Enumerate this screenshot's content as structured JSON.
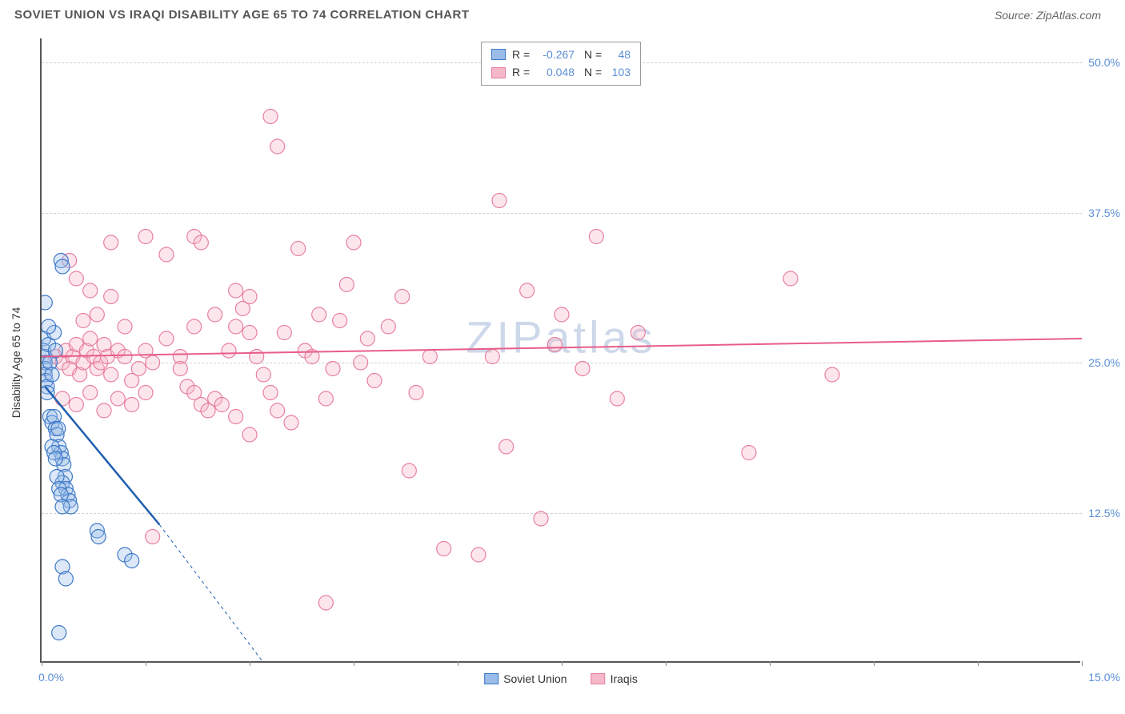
{
  "header": {
    "title": "SOVIET UNION VS IRAQI DISABILITY AGE 65 TO 74 CORRELATION CHART",
    "source": "Source: ZipAtlas.com"
  },
  "watermark": "ZIPatlas",
  "chart": {
    "type": "scatter",
    "y_axis_title": "Disability Age 65 to 74",
    "xlim": [
      0,
      15
    ],
    "ylim": [
      0,
      52
    ],
    "y_ticks": [
      12.5,
      25.0,
      37.5,
      50.0
    ],
    "y_tick_labels": [
      "12.5%",
      "25.0%",
      "37.5%",
      "50.0%"
    ],
    "x_ticks": [
      0,
      1.5,
      3.0,
      4.5,
      6.0,
      7.5,
      9.0,
      10.5,
      12.0,
      13.5,
      15.0
    ],
    "x_start_label": "0.0%",
    "x_end_label": "15.0%",
    "background_color": "#ffffff",
    "grid_color": "#d0d0d0",
    "axis_color": "#555555",
    "tick_label_color": "#5b8fd6",
    "marker_radius": 9,
    "marker_stroke_width": 1.2,
    "marker_fill_opacity": 0.35,
    "series": {
      "soviet": {
        "label": "Soviet Union",
        "fill": "#9bbce8",
        "stroke": "#3d78c7",
        "trend_color": "#1f5fb0",
        "trend_solid": {
          "x1": 0.05,
          "y1": 23.0,
          "x2": 1.7,
          "y2": 11.5
        },
        "trend_dashed": {
          "x1": 1.7,
          "y1": 11.5,
          "x2": 3.2,
          "y2": 0.0
        },
        "points": [
          [
            0.03,
            27.0
          ],
          [
            0.03,
            26.0
          ],
          [
            0.05,
            25.5
          ],
          [
            0.05,
            25.0
          ],
          [
            0.05,
            24.5
          ],
          [
            0.05,
            24.0
          ],
          [
            0.06,
            23.5
          ],
          [
            0.08,
            23.0
          ],
          [
            0.08,
            22.5
          ],
          [
            0.1,
            26.5
          ],
          [
            0.12,
            25.0
          ],
          [
            0.15,
            24.0
          ],
          [
            0.18,
            27.5
          ],
          [
            0.2,
            26.0
          ],
          [
            0.05,
            30.0
          ],
          [
            0.1,
            28.0
          ],
          [
            0.28,
            33.5
          ],
          [
            0.3,
            33.0
          ],
          [
            0.12,
            20.5
          ],
          [
            0.15,
            20.0
          ],
          [
            0.18,
            20.5
          ],
          [
            0.2,
            19.5
          ],
          [
            0.22,
            19.0
          ],
          [
            0.24,
            19.5
          ],
          [
            0.25,
            18.0
          ],
          [
            0.28,
            17.5
          ],
          [
            0.3,
            17.0
          ],
          [
            0.32,
            16.5
          ],
          [
            0.34,
            15.5
          ],
          [
            0.3,
            15.0
          ],
          [
            0.35,
            14.5
          ],
          [
            0.38,
            14.0
          ],
          [
            0.4,
            13.5
          ],
          [
            0.42,
            13.0
          ],
          [
            0.15,
            18.0
          ],
          [
            0.18,
            17.5
          ],
          [
            0.2,
            17.0
          ],
          [
            0.22,
            15.5
          ],
          [
            0.25,
            14.5
          ],
          [
            0.28,
            14.0
          ],
          [
            0.3,
            13.0
          ],
          [
            0.8,
            11.0
          ],
          [
            0.82,
            10.5
          ],
          [
            1.2,
            9.0
          ],
          [
            1.3,
            8.5
          ],
          [
            0.3,
            8.0
          ],
          [
            0.35,
            7.0
          ],
          [
            0.25,
            2.5
          ]
        ]
      },
      "iraqi": {
        "label": "Iraqis",
        "fill": "#f5b8c8",
        "stroke": "#e87fa0",
        "trend_color": "#e85d8a",
        "trend_solid": {
          "x1": 0.0,
          "y1": 25.5,
          "x2": 15.0,
          "y2": 27.0
        },
        "points": [
          [
            0.2,
            25.5
          ],
          [
            0.3,
            25.0
          ],
          [
            0.35,
            26.0
          ],
          [
            0.4,
            24.5
          ],
          [
            0.45,
            25.5
          ],
          [
            0.5,
            26.5
          ],
          [
            0.55,
            24.0
          ],
          [
            0.6,
            25.0
          ],
          [
            0.65,
            26.0
          ],
          [
            0.7,
            27.0
          ],
          [
            0.75,
            25.5
          ],
          [
            0.8,
            24.5
          ],
          [
            0.85,
            25.0
          ],
          [
            0.9,
            26.5
          ],
          [
            0.95,
            25.5
          ],
          [
            1.0,
            24.0
          ],
          [
            1.1,
            26.0
          ],
          [
            1.2,
            25.5
          ],
          [
            1.3,
            23.5
          ],
          [
            1.4,
            24.5
          ],
          [
            1.5,
            26.0
          ],
          [
            1.6,
            25.0
          ],
          [
            0.3,
            22.0
          ],
          [
            0.5,
            21.5
          ],
          [
            0.7,
            22.5
          ],
          [
            0.9,
            21.0
          ],
          [
            1.1,
            22.0
          ],
          [
            1.3,
            21.5
          ],
          [
            1.5,
            22.5
          ],
          [
            0.6,
            28.5
          ],
          [
            0.8,
            29.0
          ],
          [
            1.0,
            30.5
          ],
          [
            0.7,
            31.0
          ],
          [
            1.2,
            28.0
          ],
          [
            0.5,
            32.0
          ],
          [
            0.4,
            33.5
          ],
          [
            1.0,
            35.0
          ],
          [
            1.5,
            35.5
          ],
          [
            1.8,
            34.0
          ],
          [
            2.2,
            35.5
          ],
          [
            2.3,
            35.0
          ],
          [
            2.0,
            25.5
          ],
          [
            2.1,
            23.0
          ],
          [
            2.2,
            22.5
          ],
          [
            2.3,
            21.5
          ],
          [
            2.4,
            21.0
          ],
          [
            2.5,
            22.0
          ],
          [
            2.6,
            21.5
          ],
          [
            2.7,
            26.0
          ],
          [
            2.8,
            28.0
          ],
          [
            2.9,
            29.5
          ],
          [
            3.0,
            30.5
          ],
          [
            3.1,
            25.5
          ],
          [
            3.2,
            24.0
          ],
          [
            3.3,
            22.5
          ],
          [
            3.4,
            21.0
          ],
          [
            1.6,
            10.5
          ],
          [
            2.0,
            24.5
          ],
          [
            2.5,
            29.0
          ],
          [
            2.8,
            20.5
          ],
          [
            3.0,
            19.0
          ],
          [
            2.8,
            31.0
          ],
          [
            3.3,
            45.5
          ],
          [
            3.4,
            43.0
          ],
          [
            3.5,
            27.5
          ],
          [
            3.6,
            20.0
          ],
          [
            3.7,
            34.5
          ],
          [
            3.8,
            26.0
          ],
          [
            3.9,
            25.5
          ],
          [
            4.0,
            29.0
          ],
          [
            4.1,
            22.0
          ],
          [
            4.2,
            24.5
          ],
          [
            4.3,
            28.5
          ],
          [
            4.5,
            35.0
          ],
          [
            4.1,
            5.0
          ],
          [
            4.4,
            31.5
          ],
          [
            4.6,
            25.0
          ],
          [
            4.7,
            27.0
          ],
          [
            4.8,
            23.5
          ],
          [
            5.0,
            28.0
          ],
          [
            5.2,
            30.5
          ],
          [
            5.4,
            22.5
          ],
          [
            5.6,
            25.5
          ],
          [
            5.8,
            9.5
          ],
          [
            5.3,
            16.0
          ],
          [
            6.3,
            9.0
          ],
          [
            6.5,
            25.5
          ],
          [
            6.6,
            38.5
          ],
          [
            6.7,
            18.0
          ],
          [
            7.0,
            31.0
          ],
          [
            7.2,
            12.0
          ],
          [
            7.4,
            26.5
          ],
          [
            7.8,
            24.5
          ],
          [
            8.0,
            35.5
          ],
          [
            8.3,
            22.0
          ],
          [
            8.6,
            27.5
          ],
          [
            10.2,
            17.5
          ],
          [
            10.8,
            32.0
          ],
          [
            11.4,
            24.0
          ],
          [
            7.5,
            29.0
          ],
          [
            2.2,
            28.0
          ],
          [
            1.8,
            27.0
          ],
          [
            3.0,
            27.5
          ]
        ]
      }
    },
    "stats_box": {
      "rows": [
        {
          "swatch_fill": "#9bbce8",
          "swatch_stroke": "#3d78c7",
          "r": "-0.267",
          "n": "48"
        },
        {
          "swatch_fill": "#f5b8c8",
          "swatch_stroke": "#e87fa0",
          "r": "0.048",
          "n": "103"
        }
      ]
    }
  }
}
